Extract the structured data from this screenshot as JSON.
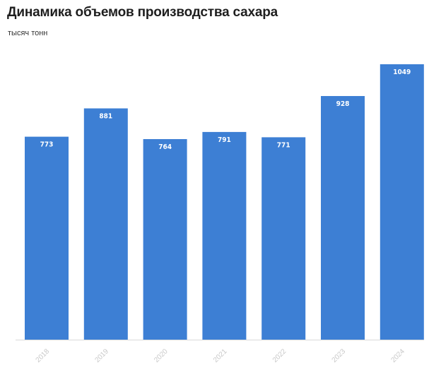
{
  "header": {
    "title": "Динамика объемов производства сахара",
    "subtitle": "тысяч тонн"
  },
  "chart_data": {
    "type": "bar",
    "title": "Динамика объемов производства сахара",
    "subtitle": "тысяч тонн",
    "xlabel": "",
    "ylabel": "",
    "categories": [
      "2018",
      "2019",
      "2020",
      "2021",
      "2022",
      "2023",
      "2024"
    ],
    "values": [
      773,
      881,
      764,
      791,
      771,
      928,
      1049
    ],
    "ylim": [
      0,
      1049
    ],
    "grid": false,
    "legend": "none",
    "bar_color": "#3d7fd4",
    "label_color": "#ffffff",
    "tick_color": "#c8c8c8",
    "baseline_color": "#d9d9d9"
  }
}
